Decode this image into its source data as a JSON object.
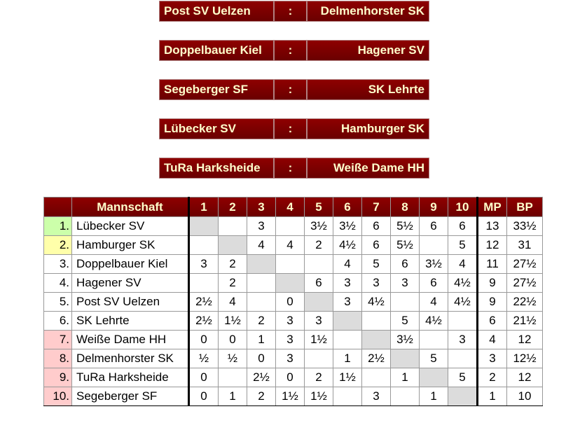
{
  "pairings": [
    {
      "home": "Post SV Uelzen",
      "sep": ":",
      "away": "Delmenhorster SK"
    },
    {
      "home": "Doppelbauer Kiel",
      "sep": ":",
      "away": "Hagener SV"
    },
    {
      "home": "Segeberger SF",
      "sep": ":",
      "away": "SK Lehrte"
    },
    {
      "home": "Lübecker SV",
      "sep": ":",
      "away": "Hamburger SK"
    },
    {
      "home": "TuRa Harksheide",
      "sep": ":",
      "away": "Weiße Dame HH"
    }
  ],
  "table": {
    "headers": [
      "",
      "Mannschaft",
      "1",
      "2",
      "3",
      "4",
      "5",
      "6",
      "7",
      "8",
      "9",
      "10",
      "MP",
      "BP"
    ],
    "rows": [
      {
        "rank": "1.",
        "team": "Lübecker SV",
        "results": [
          "",
          "",
          "3",
          "",
          "3½",
          "3½",
          "6",
          "5½",
          "6",
          "6"
        ],
        "mp": "13",
        "bp": "33½",
        "status": "promotion"
      },
      {
        "rank": "2.",
        "team": "Hamburger SK",
        "results": [
          "",
          "",
          "4",
          "4",
          "2",
          "4½",
          "6",
          "5½",
          "",
          "5"
        ],
        "mp": "12",
        "bp": "31",
        "status": "second"
      },
      {
        "rank": "3.",
        "team": "Doppelbauer Kiel",
        "results": [
          "3",
          "2",
          "",
          "",
          "",
          "4",
          "5",
          "6",
          "3½",
          "4"
        ],
        "mp": "11",
        "bp": "27½",
        "status": "none"
      },
      {
        "rank": "4.",
        "team": "Hagener SV",
        "results": [
          "",
          "2",
          "",
          "",
          "6",
          "3",
          "3",
          "3",
          "6",
          "4½"
        ],
        "mp": "9",
        "bp": "27½",
        "status": "none"
      },
      {
        "rank": "5.",
        "team": "Post SV Uelzen",
        "results": [
          "2½",
          "4",
          "",
          "0",
          "",
          "3",
          "4½",
          "",
          "4",
          "4½"
        ],
        "mp": "9",
        "bp": "22½",
        "status": "none"
      },
      {
        "rank": "6.",
        "team": "SK Lehrte",
        "results": [
          "2½",
          "1½",
          "2",
          "3",
          "3",
          "",
          "",
          "5",
          "4½",
          ""
        ],
        "mp": "6",
        "bp": "21½",
        "status": "none"
      },
      {
        "rank": "7.",
        "team": "Weiße Dame HH",
        "results": [
          "0",
          "0",
          "1",
          "3",
          "1½",
          "",
          "",
          "3½",
          "",
          "3"
        ],
        "mp": "4",
        "bp": "12",
        "status": "relegation"
      },
      {
        "rank": "8.",
        "team": "Delmenhorster SK",
        "results": [
          "½",
          "½",
          "0",
          "3",
          "",
          "1",
          "2½",
          "",
          "5",
          ""
        ],
        "mp": "3",
        "bp": "12½",
        "status": "relegation"
      },
      {
        "rank": "9.",
        "team": "TuRa Harksheide",
        "results": [
          "0",
          "",
          "2½",
          "0",
          "2",
          "1½",
          "",
          "1",
          "",
          "5"
        ],
        "mp": "2",
        "bp": "12",
        "status": "relegation"
      },
      {
        "rank": "10.",
        "team": "Segeberger SF",
        "results": [
          "0",
          "1",
          "2",
          "1½",
          "1½",
          "",
          "3",
          "",
          "1",
          ""
        ],
        "mp": "1",
        "bp": "10",
        "status": "relegation"
      }
    ]
  },
  "colors": {
    "header": "#7a0000",
    "header_text": "#ffffcc",
    "promotion": "#ccffaa",
    "second": "#ffffaa",
    "relegation": "#ffcccc",
    "diagonal": "#dcdcdc"
  }
}
